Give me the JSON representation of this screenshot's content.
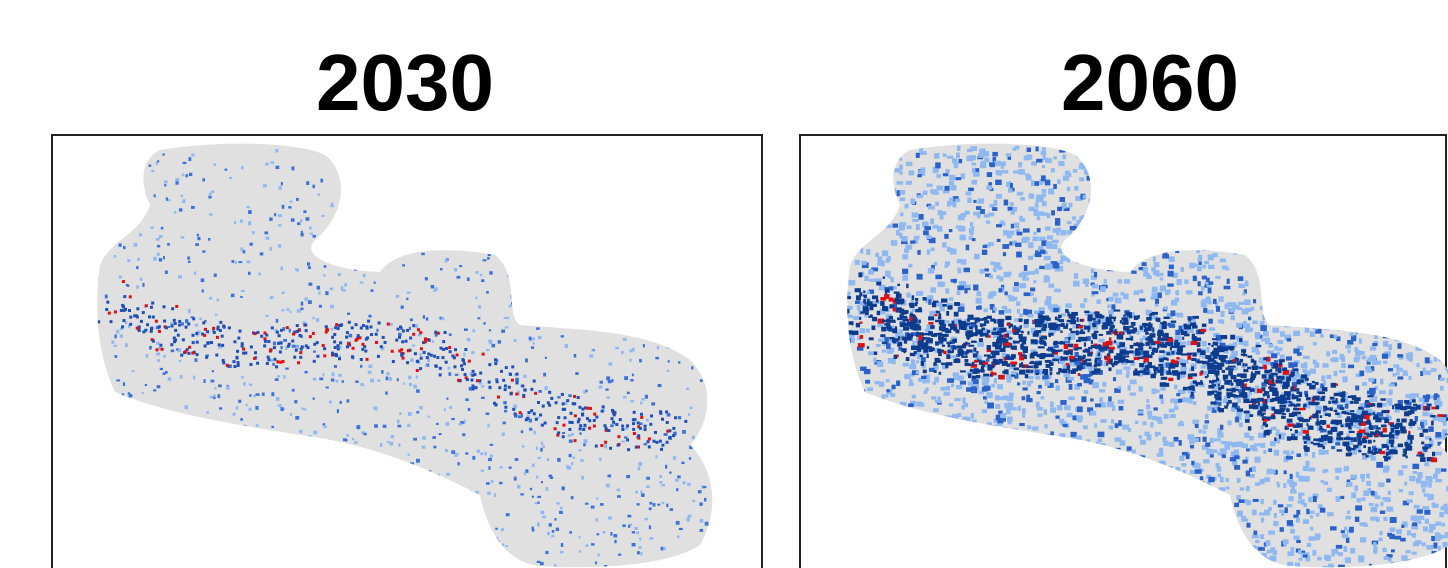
{
  "panels": [
    {
      "title": "2030"
    },
    {
      "title": "2060"
    }
  ]
}
